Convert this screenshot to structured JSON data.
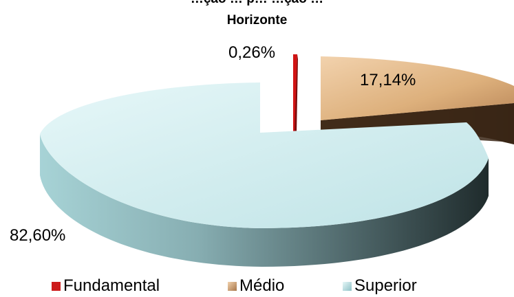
{
  "chart_data": {
    "type": "pie",
    "title_line1": "…ção … p… …ção …",
    "title_line2": "Horizonte",
    "slices": [
      {
        "name": "Fundamental",
        "value": 0.26,
        "label": "0,26%",
        "color": "#cc1b1b"
      },
      {
        "name": "Médio",
        "value": 17.14,
        "label": "17,14%",
        "color": "#e2b487"
      },
      {
        "name": "Superior",
        "value": 82.6,
        "label": "82,60%",
        "color": "#bfe6ea"
      }
    ],
    "legend_position": "bottom"
  }
}
